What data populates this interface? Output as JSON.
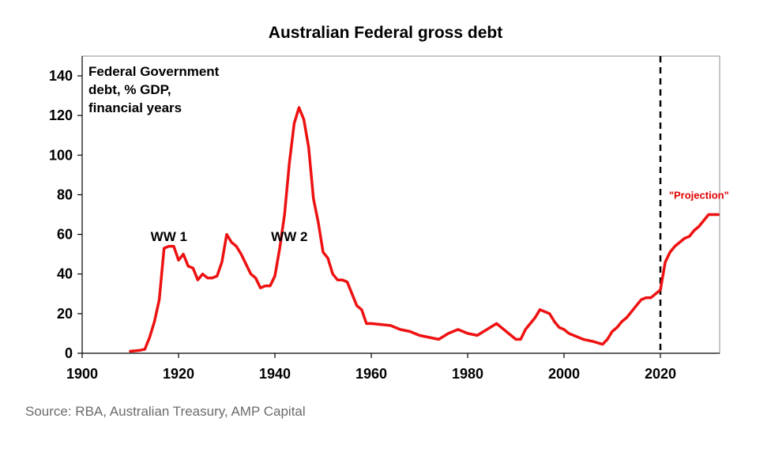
{
  "title": "Australian Federal gross debt",
  "source": "Source: RBA, Australian Treasury, AMP Capital",
  "colors": {
    "series": "#ee1111",
    "projection_label": "#e00000",
    "divider": "#000000"
  },
  "chart_data": {
    "type": "line",
    "title": "Australian Federal gross debt",
    "xlabel": "",
    "ylabel": "",
    "xlim": [
      1900,
      2033
    ],
    "ylim": [
      0,
      150
    ],
    "xticks": [
      1900,
      1920,
      1940,
      1960,
      1980,
      2000,
      2020
    ],
    "yticks": [
      0,
      20,
      40,
      60,
      80,
      100,
      120,
      140
    ],
    "xtick_labels": [
      "1900",
      "1920",
      "1940",
      "1960",
      "1980",
      "2000",
      "2020"
    ],
    "ytick_labels": [
      "0",
      "20",
      "40",
      "60",
      "80",
      "100",
      "120",
      "140"
    ],
    "grid": false,
    "inner_label": [
      "Federal Government",
      "debt, % GDP,",
      "financial years"
    ],
    "annotations": [
      {
        "text": "WW 1",
        "x": 1918,
        "y": 59
      },
      {
        "text": "WW 2",
        "x": 1943,
        "y": 59
      },
      {
        "text": "\"Projection\"",
        "x": 2028,
        "y": 78
      }
    ],
    "divider_x": 2020,
    "series": [
      {
        "color": "#ee1111",
        "x": [
          1910,
          1912,
          1913,
          1914,
          1915,
          1916,
          1917,
          1918,
          1919,
          1920,
          1921,
          1922,
          1923,
          1924,
          1925,
          1926,
          1927,
          1928,
          1929,
          1930,
          1931,
          1932,
          1933,
          1934,
          1935,
          1936,
          1937,
          1938,
          1939,
          1940,
          1941,
          1942,
          1943,
          1944,
          1945,
          1946,
          1947,
          1948,
          1949,
          1950,
          1951,
          1952,
          1953,
          1954,
          1955,
          1956,
          1957,
          1958,
          1959,
          1960,
          1962,
          1964,
          1966,
          1968,
          1970,
          1972,
          1974,
          1976,
          1978,
          1980,
          1982,
          1984,
          1986,
          1988,
          1990,
          1991,
          1992,
          1994,
          1995,
          1996,
          1997,
          1998,
          1999,
          2000,
          2001,
          2002,
          2004,
          2006,
          2008,
          2009,
          2010,
          2011,
          2012,
          2013,
          2014,
          2015,
          2016,
          2017,
          2018,
          2019,
          2020,
          2021,
          2022,
          2023,
          2024,
          2025,
          2026,
          2027,
          2028,
          2029,
          2030,
          2031,
          2032
        ],
        "values": [
          1,
          1.5,
          2,
          8,
          16,
          27,
          53,
          54,
          54,
          47,
          50,
          44,
          43,
          37,
          40,
          38,
          38,
          39,
          46,
          60,
          56,
          54,
          50,
          45,
          40,
          38,
          33,
          34,
          34,
          39,
          53,
          70,
          96,
          116,
          124,
          118,
          104,
          78,
          66,
          51,
          48,
          40,
          37,
          37,
          36,
          30,
          24,
          22,
          15,
          15,
          14.5,
          14,
          12,
          11,
          9,
          8,
          7,
          10,
          12,
          10,
          9,
          12,
          15,
          11,
          7,
          7,
          12,
          18,
          22,
          21,
          20,
          16,
          13,
          12,
          10,
          9,
          7,
          6,
          4.5,
          7,
          11,
          13,
          16,
          18,
          21,
          24,
          27,
          28,
          28,
          30,
          32,
          46,
          51,
          54,
          56,
          58,
          59,
          62,
          64,
          67,
          70,
          70,
          70
        ]
      }
    ]
  }
}
